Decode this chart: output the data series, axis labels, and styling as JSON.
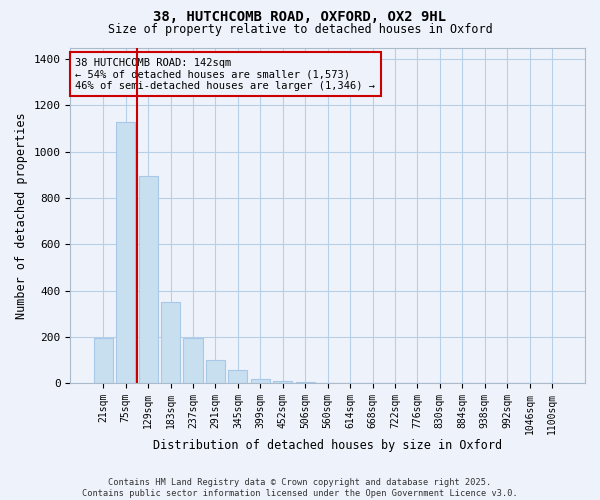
{
  "title": "38, HUTCHCOMB ROAD, OXFORD, OX2 9HL",
  "subtitle": "Size of property relative to detached houses in Oxford",
  "xlabel": "Distribution of detached houses by size in Oxford",
  "ylabel": "Number of detached properties",
  "bar_color": "#c8dff0",
  "bar_edge_color": "#a8c8e8",
  "grid_color": "#b8cfe8",
  "background_color": "#eef2fa",
  "categories": [
    "21sqm",
    "75sqm",
    "129sqm",
    "183sqm",
    "237sqm",
    "291sqm",
    "345sqm",
    "399sqm",
    "452sqm",
    "506sqm",
    "560sqm",
    "614sqm",
    "668sqm",
    "722sqm",
    "776sqm",
    "830sqm",
    "884sqm",
    "938sqm",
    "992sqm",
    "1046sqm",
    "1100sqm"
  ],
  "values": [
    195,
    1130,
    895,
    350,
    195,
    100,
    55,
    18,
    8,
    4,
    2,
    1,
    0,
    0,
    0,
    0,
    0,
    0,
    0,
    0,
    0
  ],
  "ylim": [
    0,
    1450
  ],
  "yticks": [
    0,
    200,
    400,
    600,
    800,
    1000,
    1200,
    1400
  ],
  "property_line_x": 1.5,
  "annotation_text": "38 HUTCHCOMB ROAD: 142sqm\n← 54% of detached houses are smaller (1,573)\n46% of semi-detached houses are larger (1,346) →",
  "annotation_box_color": "#cc0000",
  "footer_line1": "Contains HM Land Registry data © Crown copyright and database right 2025.",
  "footer_line2": "Contains public sector information licensed under the Open Government Licence v3.0."
}
